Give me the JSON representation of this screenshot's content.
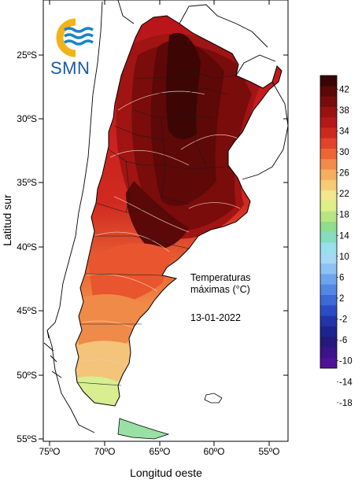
{
  "map": {
    "logo_text": "SMN",
    "x_axis_title": "Longitud oeste",
    "y_axis_title": "Latitud sur",
    "x_ticks": [
      "75ºO",
      "70ºO",
      "65ºO",
      "60ºO",
      "55ºO"
    ],
    "y_ticks": [
      "25ºS",
      "30ºS",
      "35ºS",
      "40ºS",
      "45ºS",
      "50ºS",
      "55ºS"
    ],
    "annotation_title_line1": "Temperaturas",
    "annotation_title_line2": "máximas (°C)",
    "annotation_date": "13-01-2022"
  },
  "colorbar": {
    "labels": [
      "42",
      "38",
      "34",
      "30",
      "26",
      "22",
      "18",
      "14",
      "10",
      "6",
      "2",
      "-2",
      "-6",
      "-10",
      "-14",
      "-18"
    ],
    "colors": [
      "#3a0505",
      "#5a0808",
      "#780c0c",
      "#981212",
      "#b51818",
      "#cc2a1e",
      "#e0442a",
      "#ec6536",
      "#f28a4a",
      "#f5ae5e",
      "#f5cc76",
      "#f2e690",
      "#dcef88",
      "#b8e584",
      "#8edc8e",
      "#86dcc0",
      "#98e0ee",
      "#a6d8f6",
      "#8ec2f2",
      "#6ea4ec",
      "#5486e4",
      "#3c68d8",
      "#2c4cc4",
      "#2234a8",
      "#1c2490",
      "#241a7e",
      "#3a1488",
      "#501098"
    ]
  },
  "legend_colors": {
    "ocean": "#ffffff",
    "border": "#000000",
    "isoline": "#f0c8b0"
  }
}
